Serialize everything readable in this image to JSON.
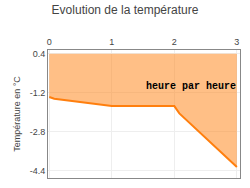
{
  "chart_data": {
    "type": "area",
    "title": "Evolution de la température",
    "ylabel": "Température en °C",
    "annotation": "heure par heure",
    "x": [
      0,
      0.08,
      1.0,
      2.0,
      2.08,
      3.0
    ],
    "values": [
      -1.38,
      -1.45,
      -1.75,
      -1.75,
      -2.05,
      -4.25
    ],
    "baseline": 0.4,
    "xlim": [
      -0.02,
      3.05
    ],
    "ylim": [
      -4.7,
      0.55
    ],
    "xticks": [
      0,
      1,
      2,
      3
    ],
    "yticks": [
      0.4,
      -1.2,
      -2.8,
      -4.4
    ],
    "grid": true
  }
}
